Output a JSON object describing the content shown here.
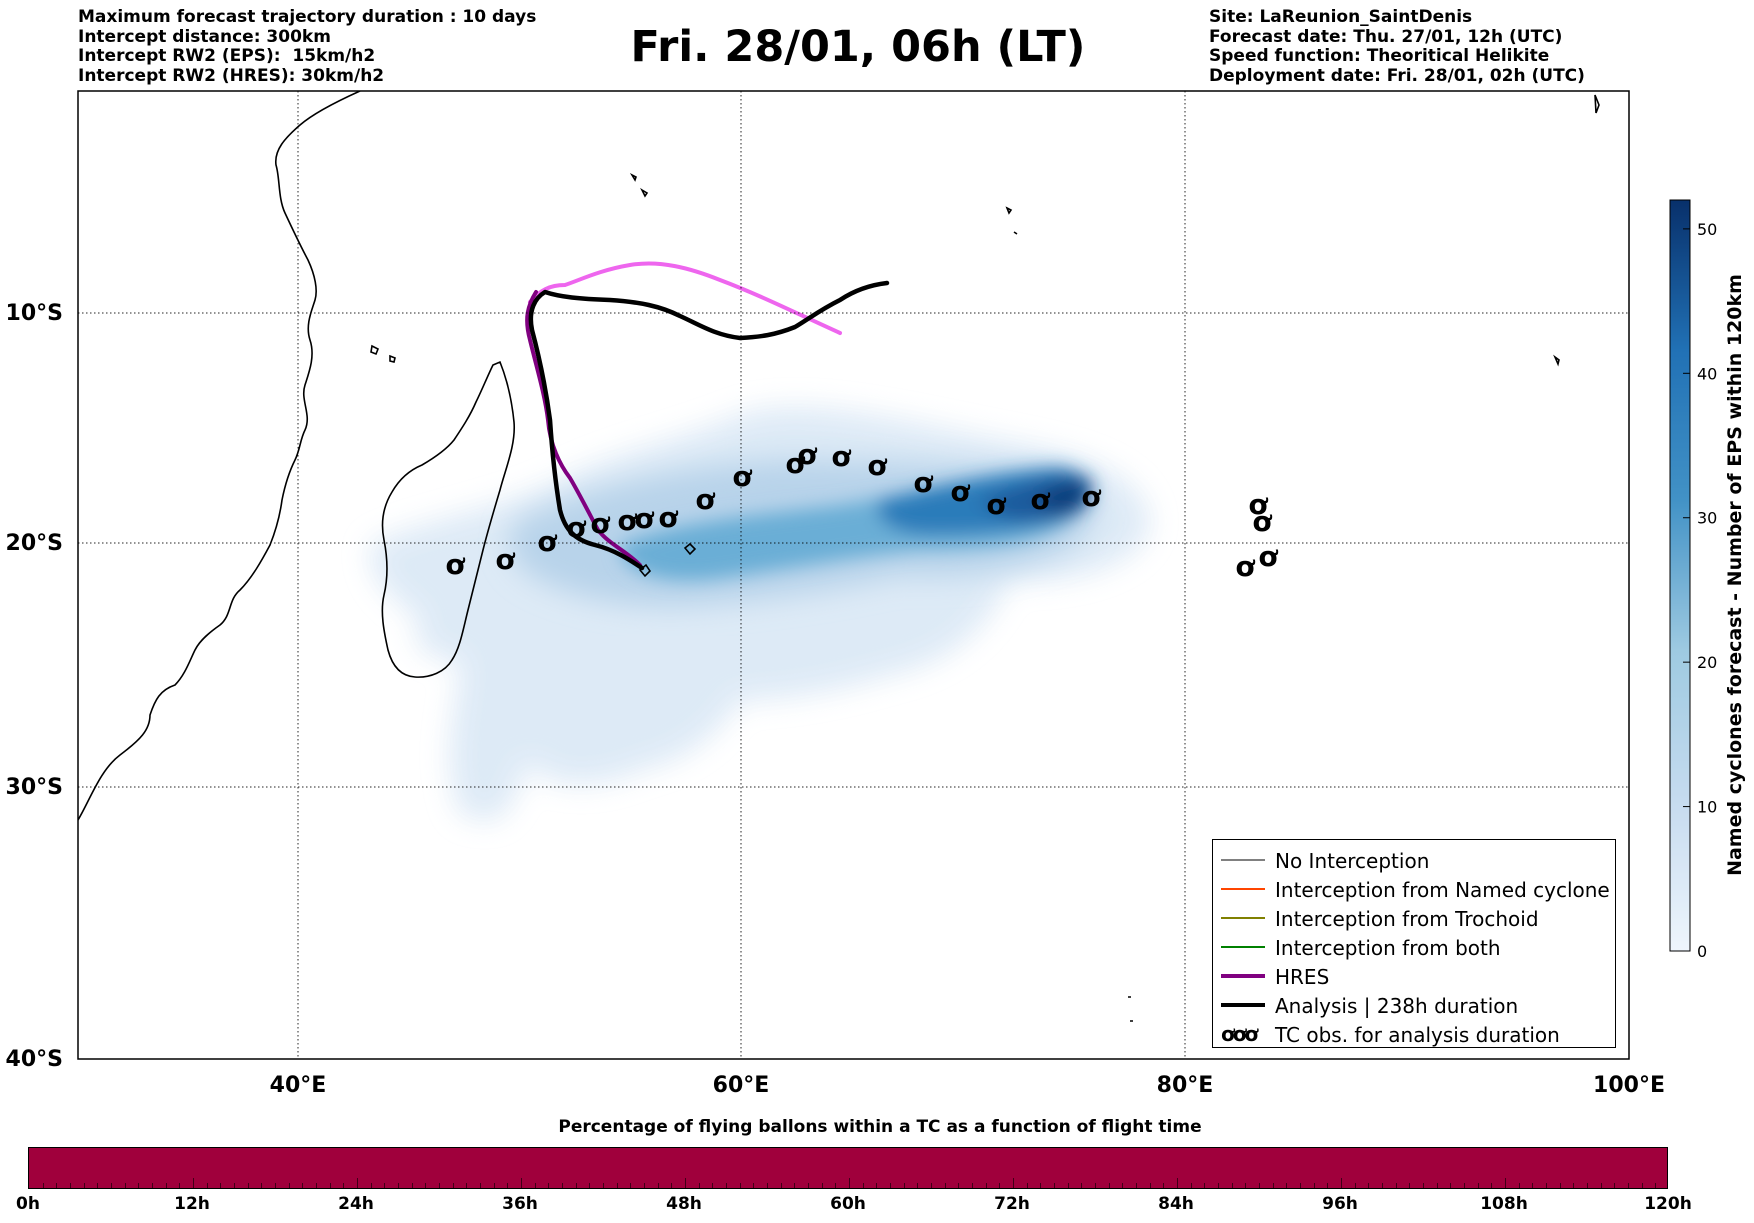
{
  "header_left": [
    "Maximum forecast trajectory duration : 10 days",
    "Intercept distance: 300km",
    "Intercept RW2 (EPS):  15km/h2",
    "Intercept RW2 (HRES): 30km/h2"
  ],
  "title": "Fri. 28/01, 06h (LT)",
  "header_right": [
    "Site: LaReunion_SaintDenis",
    "Forecast date: Thu. 27/01, 12h (UTC)",
    "Speed function: Theoritical Helikite",
    "Deployment date: Fri. 28/01, 02h (UTC)"
  ],
  "map": {
    "lat_labels": [
      "10°S",
      "20°S",
      "30°S",
      "40°S"
    ],
    "lon_labels": [
      "40°E",
      "60°E",
      "80°E",
      "100°E"
    ],
    "lon_range": [
      30,
      100
    ],
    "lat_range": [
      -40,
      -0.2
    ],
    "gridlines": "dotted"
  },
  "colorbar": {
    "title": "Named cyclones forecast - Number of EPS within 120km",
    "ticks": [
      "0",
      "10",
      "20",
      "30",
      "40",
      "50"
    ],
    "range": [
      0,
      52
    ],
    "colors": [
      "#eaf2fb",
      "#08306b"
    ]
  },
  "legend": {
    "items": [
      {
        "label": "No Interception",
        "color": "#808080",
        "style": "thin"
      },
      {
        "label": "Interception from Named cyclone",
        "color": "#ff4500",
        "style": "thin"
      },
      {
        "label": "Interception from Trochoid",
        "color": "#808000",
        "style": "thin"
      },
      {
        "label": "Interception from both",
        "color": "#008000",
        "style": "thin"
      },
      {
        "label": "HRES",
        "color": "#800080",
        "style": "thick"
      },
      {
        "label": "Analysis | 238h duration",
        "color": "#000000",
        "style": "thick"
      },
      {
        "label": "TC obs. for analysis duration",
        "color": "#000000",
        "style": "symbol",
        "symbol": "ơơơ"
      }
    ]
  },
  "tracks": {
    "hres_color": "#800080",
    "hres_future_color": "#ee66ee",
    "analysis_color": "#000000"
  },
  "tc_symbol": "ơ",
  "bottom": {
    "title": "Percentage of flying ballons within a TC as a function of flight time",
    "bar_color": "#a0003c",
    "bar_percent": 100,
    "ticks": [
      "0h",
      "12h",
      "24h",
      "36h",
      "48h",
      "60h",
      "72h",
      "84h",
      "96h",
      "108h",
      "120h"
    ]
  }
}
